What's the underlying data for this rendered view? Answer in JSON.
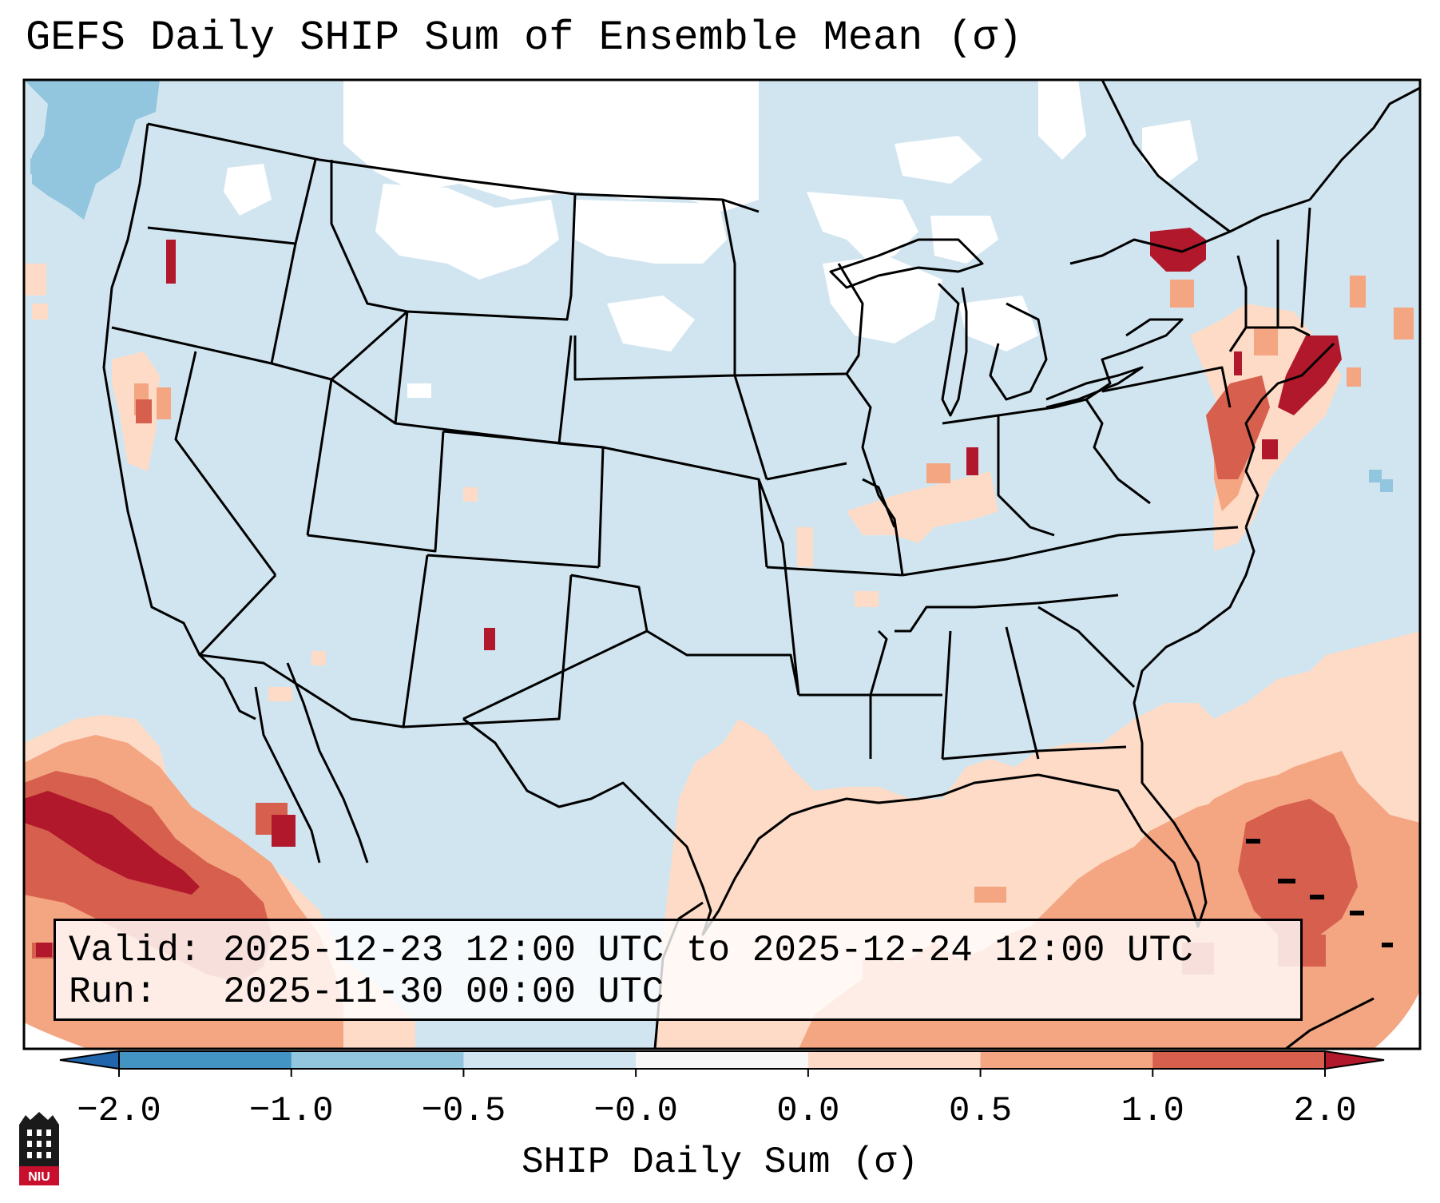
{
  "title": "GEFS Daily SHIP Sum of Ensemble Mean (σ)",
  "info": {
    "valid_label": "Valid:",
    "valid_value": "2025-12-23 12:00 UTC to 2025-12-24 12:00 UTC",
    "run_label": "Run:",
    "run_value": "2025-11-30 00:00 UTC"
  },
  "colorbar": {
    "label": "SHIP Daily Sum (σ)",
    "ticks": [
      "−2.0",
      "−1.0",
      "−0.5",
      "−0.0",
      "0.0",
      "0.5",
      "1.0",
      "2.0"
    ],
    "colors": [
      "#4393c3",
      "#92c5de",
      "#d1e5f0",
      "#f7f7f7",
      "#fddbc7",
      "#f4a582",
      "#d6604d",
      "#b2182b"
    ],
    "extend_min_color": "#2166ac",
    "extend_max_color": "#b2182b"
  },
  "logo_text": "NIU",
  "colors": {
    "ocean_near_zero": "#d1e5f0",
    "neutral": "#ffffff",
    "border": "#000000"
  }
}
